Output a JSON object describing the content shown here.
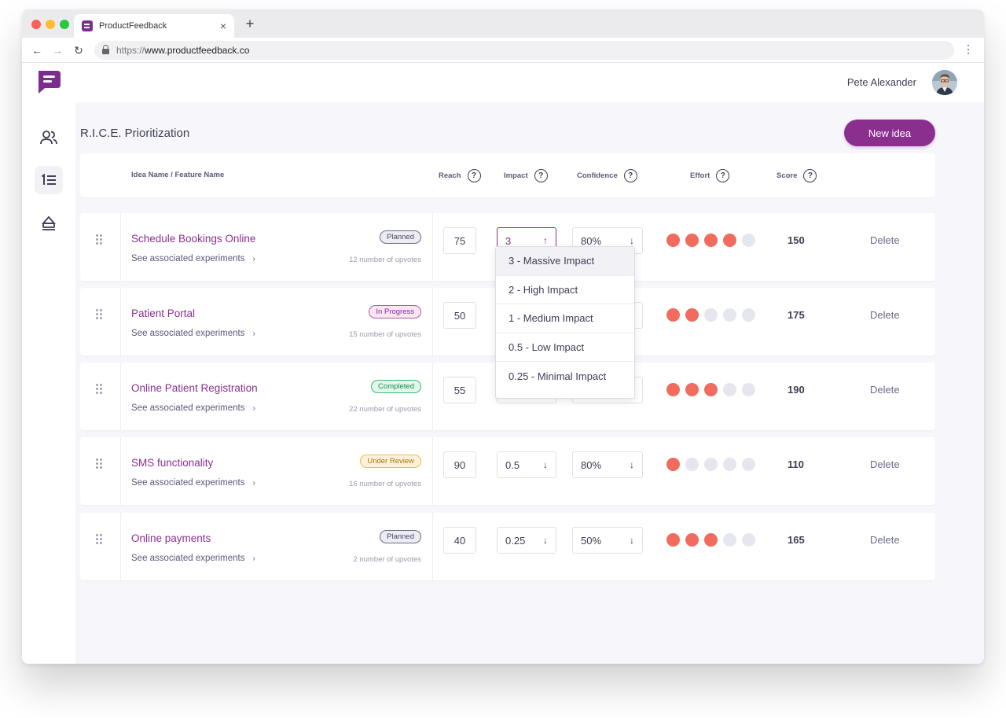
{
  "browser": {
    "tab_title": "ProductFeedback",
    "tab_close": "×",
    "new_tab": "+",
    "back": "←",
    "forward": "→",
    "reload": "↻",
    "url_scheme": "https://",
    "url_host": "www.productfeedback.co",
    "menu": "⋮"
  },
  "header": {
    "user_name": "Pete Alexander"
  },
  "page": {
    "title": "R.I.C.E. Prioritization",
    "new_idea_label": "New idea"
  },
  "columns": {
    "idea": "Idea Name / Feature Name",
    "reach": "Reach",
    "impact": "Impact",
    "confidence": "Confidence",
    "effort": "Effort",
    "score": "Score",
    "help": "?"
  },
  "common": {
    "see_experiments": "See associated experiments",
    "chevron": "›",
    "delete": "Delete",
    "arrow_down": "↓",
    "arrow_up": "↑"
  },
  "rows": [
    {
      "name": "Schedule Bookings Online",
      "status": "Planned",
      "upvotes": "12 number of upvotes",
      "reach": "75",
      "impact": "3",
      "confidence": "80%",
      "effort": 4,
      "score": "150"
    },
    {
      "name": "Patient Portal",
      "status": "In Progress",
      "upvotes": "15 number of upvotes",
      "reach": "50",
      "impact": "",
      "confidence": "",
      "effort": 2,
      "score": "175"
    },
    {
      "name": "Online Patient Registration",
      "status": "Completed",
      "upvotes": "22 number of upvotes",
      "reach": "55",
      "impact": "",
      "confidence": "",
      "effort": 3,
      "score": "190"
    },
    {
      "name": "SMS functionality",
      "status": "Under Review",
      "upvotes": "16 number of upvotes",
      "reach": "90",
      "impact": "0.5",
      "confidence": "80%",
      "effort": 1,
      "score": "110"
    },
    {
      "name": "Online payments",
      "status": "Planned",
      "upvotes": "2 number of upvotes",
      "reach": "40",
      "impact": "0.25",
      "confidence": "50%",
      "effort": 3,
      "score": "165"
    }
  ],
  "impact_options": [
    "3 - Massive Impact",
    "2 - High Impact",
    "1 - Medium Impact",
    "0.5 - Low Impact",
    "0.25 - Minimal Impact"
  ],
  "colors": {
    "brand": "#8b2f8f",
    "effort_on": "#f16b5e",
    "effort_off": "#e6e6ee"
  }
}
